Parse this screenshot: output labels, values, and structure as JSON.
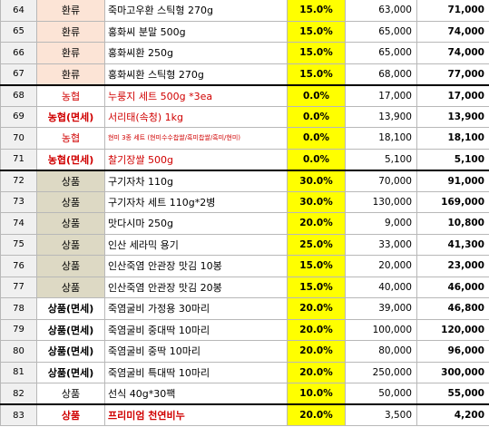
{
  "rows": [
    {
      "no": "64",
      "cat": "환류",
      "name": "죽마고우환 스틱형 270g",
      "rate": "15.0%",
      "price": "63,000",
      "sale": "71,000",
      "group": "hwan"
    },
    {
      "no": "65",
      "cat": "환류",
      "name": "홍화씨 분말 500g",
      "rate": "15.0%",
      "price": "65,000",
      "sale": "74,000",
      "group": "hwan"
    },
    {
      "no": "66",
      "cat": "환류",
      "name": "홍화씨환 250g",
      "rate": "15.0%",
      "price": "65,000",
      "sale": "74,000",
      "group": "hwan"
    },
    {
      "no": "67",
      "cat": "환류",
      "name": "홍화씨환 스틱형 270g",
      "rate": "15.0%",
      "price": "68,000",
      "sale": "77,000",
      "group": "hwan"
    },
    {
      "no": "68",
      "cat": "농협",
      "name": "누룽지 세트 500g *3ea",
      "rate": "0.0%",
      "price": "17,000",
      "sale": "17,000",
      "group": "nh"
    },
    {
      "no": "69",
      "cat": "농협(면세)",
      "name": "서리태(속청) 1kg",
      "rate": "0.0%",
      "price": "13,900",
      "sale": "13,900",
      "group": "nh",
      "catBold": true
    },
    {
      "no": "70",
      "cat": "농협",
      "name": "현미 3종 세트 (현미수수찹쌀/흑미찹쌀/흑미/현미)",
      "rate": "0.0%",
      "price": "18,100",
      "sale": "18,100",
      "group": "nh",
      "tiny": true
    },
    {
      "no": "71",
      "cat": "농협(면세)",
      "name": "찰기장쌀 500g",
      "rate": "0.0%",
      "price": "5,100",
      "sale": "5,100",
      "group": "nh",
      "catBold": true
    },
    {
      "no": "72",
      "cat": "상품",
      "name": "구기자차 110g",
      "rate": "30.0%",
      "price": "70,000",
      "sale": "91,000",
      "group": "sp"
    },
    {
      "no": "73",
      "cat": "상품",
      "name": "구기자차 세트 110g*2병",
      "rate": "30.0%",
      "price": "130,000",
      "sale": "169,000",
      "group": "sp"
    },
    {
      "no": "74",
      "cat": "상품",
      "name": "맛다시마 250g",
      "rate": "20.0%",
      "price": "9,000",
      "sale": "10,800",
      "group": "sp"
    },
    {
      "no": "75",
      "cat": "상품",
      "name": "인산 세라믹 용기",
      "rate": "25.0%",
      "price": "33,000",
      "sale": "41,300",
      "group": "sp"
    },
    {
      "no": "76",
      "cat": "상품",
      "name": "인산죽염 안관장 맛김 10봉",
      "rate": "15.0%",
      "price": "20,000",
      "sale": "23,000",
      "group": "sp"
    },
    {
      "no": "77",
      "cat": "상품",
      "name": "인산죽염 안관장 맛김 20봉",
      "rate": "15.0%",
      "price": "40,000",
      "sale": "46,000",
      "group": "sp"
    },
    {
      "no": "78",
      "cat": "상품(면세)",
      "name": "죽염굴비 가정용 30마리",
      "rate": "20.0%",
      "price": "39,000",
      "sale": "46,800",
      "group": "spm"
    },
    {
      "no": "79",
      "cat": "상품(면세)",
      "name": "죽염굴비 중대딱 10마리",
      "rate": "20.0%",
      "price": "100,000",
      "sale": "120,000",
      "group": "spm"
    },
    {
      "no": "80",
      "cat": "상품(면세)",
      "name": "죽염굴비 중딱 10마리",
      "rate": "20.0%",
      "price": "80,000",
      "sale": "96,000",
      "group": "spm"
    },
    {
      "no": "81",
      "cat": "상품(면세)",
      "name": "죽염굴비 특대딱 10마리",
      "rate": "20.0%",
      "price": "250,000",
      "sale": "300,000",
      "group": "spm"
    },
    {
      "no": "82",
      "cat": "상품",
      "name": "선식 40g*30팩",
      "rate": "10.0%",
      "price": "50,000",
      "sale": "55,000",
      "group": "plain"
    },
    {
      "no": "83",
      "cat": "상품",
      "name": "프리미엄 천연비누",
      "rate": "20.0%",
      "price": "3,500",
      "sale": "4,200",
      "group": "red"
    }
  ]
}
